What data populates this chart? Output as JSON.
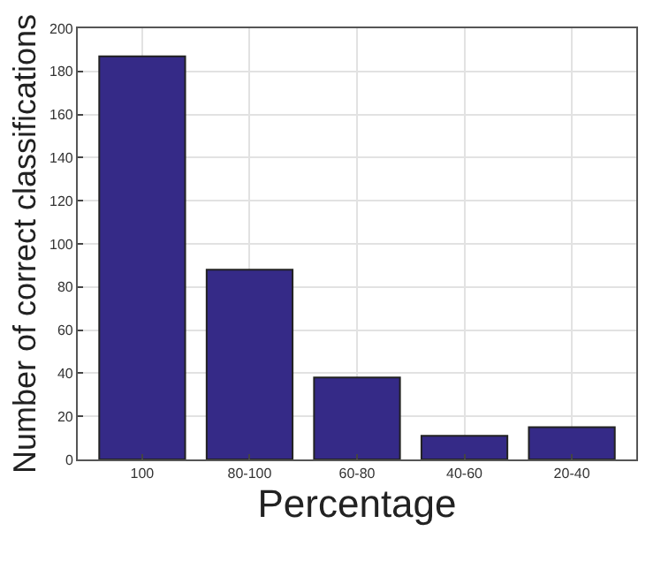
{
  "chart_data": {
    "type": "bar",
    "xlabel": "Percentage",
    "ylabel": "Number of correct classifications",
    "categories": [
      "100",
      "80-100",
      "60-80",
      "40-60",
      "20-40"
    ],
    "values": [
      187,
      88,
      38,
      11,
      15
    ],
    "color": "#352a87",
    "ylim": [
      0,
      200
    ],
    "yticks": [
      0,
      20,
      40,
      60,
      80,
      100,
      120,
      140,
      160,
      180,
      200
    ],
    "grid": true
  }
}
